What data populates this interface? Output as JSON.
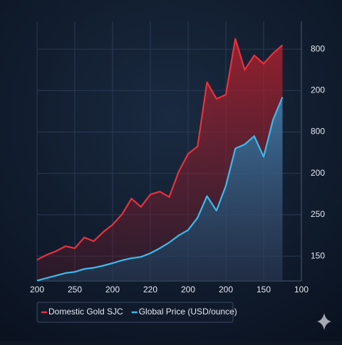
{
  "chart_data": {
    "type": "line",
    "x": [
      0,
      0.25,
      0.5,
      0.75,
      1,
      1.25,
      1.5,
      1.75,
      2,
      2.25,
      2.5,
      2.75,
      3,
      3.25,
      3.5,
      3.75,
      4,
      4.25,
      4.5,
      4.75,
      5,
      5.25,
      5.5,
      5.75,
      6,
      6.25,
      6.5
    ],
    "series": [
      {
        "name": "Domestic Gold SJC",
        "color": "#e8323e",
        "values": [
          0.91,
          1.03,
          1.12,
          1.24,
          1.19,
          1.45,
          1.36,
          1.58,
          1.76,
          2.01,
          2.39,
          2.19,
          2.49,
          2.56,
          2.43,
          3.04,
          3.47,
          3.65,
          5.2,
          4.8,
          4.9,
          6.25,
          5.5,
          5.85,
          5.65,
          5.9,
          6.1
        ]
      },
      {
        "name": "Global Price (USD/ounce)",
        "color": "#3cbbec",
        "values": [
          0.41,
          0.47,
          0.53,
          0.59,
          0.62,
          0.69,
          0.72,
          0.77,
          0.83,
          0.9,
          0.95,
          0.98,
          1.07,
          1.19,
          1.33,
          1.5,
          1.63,
          1.93,
          2.45,
          2.1,
          2.7,
          3.6,
          3.7,
          3.9,
          3.4,
          4.3,
          4.84
        ]
      }
    ],
    "xlim": [
      0,
      7
    ],
    "xticks": [
      {
        "value": 0,
        "label": "200"
      },
      {
        "value": 1,
        "label": "250"
      },
      {
        "value": 2,
        "label": "200"
      },
      {
        "value": 3,
        "label": "220"
      },
      {
        "value": 4,
        "label": "200"
      },
      {
        "value": 5,
        "label": "200"
      },
      {
        "value": 6,
        "label": "150"
      },
      {
        "value": 7,
        "label": "100"
      }
    ],
    "ylim": [
      0.4,
      6.5
    ],
    "yticks": [
      {
        "value": 1,
        "label": "150"
      },
      {
        "value": 2,
        "label": "250"
      },
      {
        "value": 3,
        "label": "200"
      },
      {
        "value": 4,
        "label": "800"
      },
      {
        "value": 5,
        "label": "200"
      },
      {
        "value": 6,
        "label": "800"
      }
    ],
    "grid": true,
    "legend": "bottom"
  }
}
